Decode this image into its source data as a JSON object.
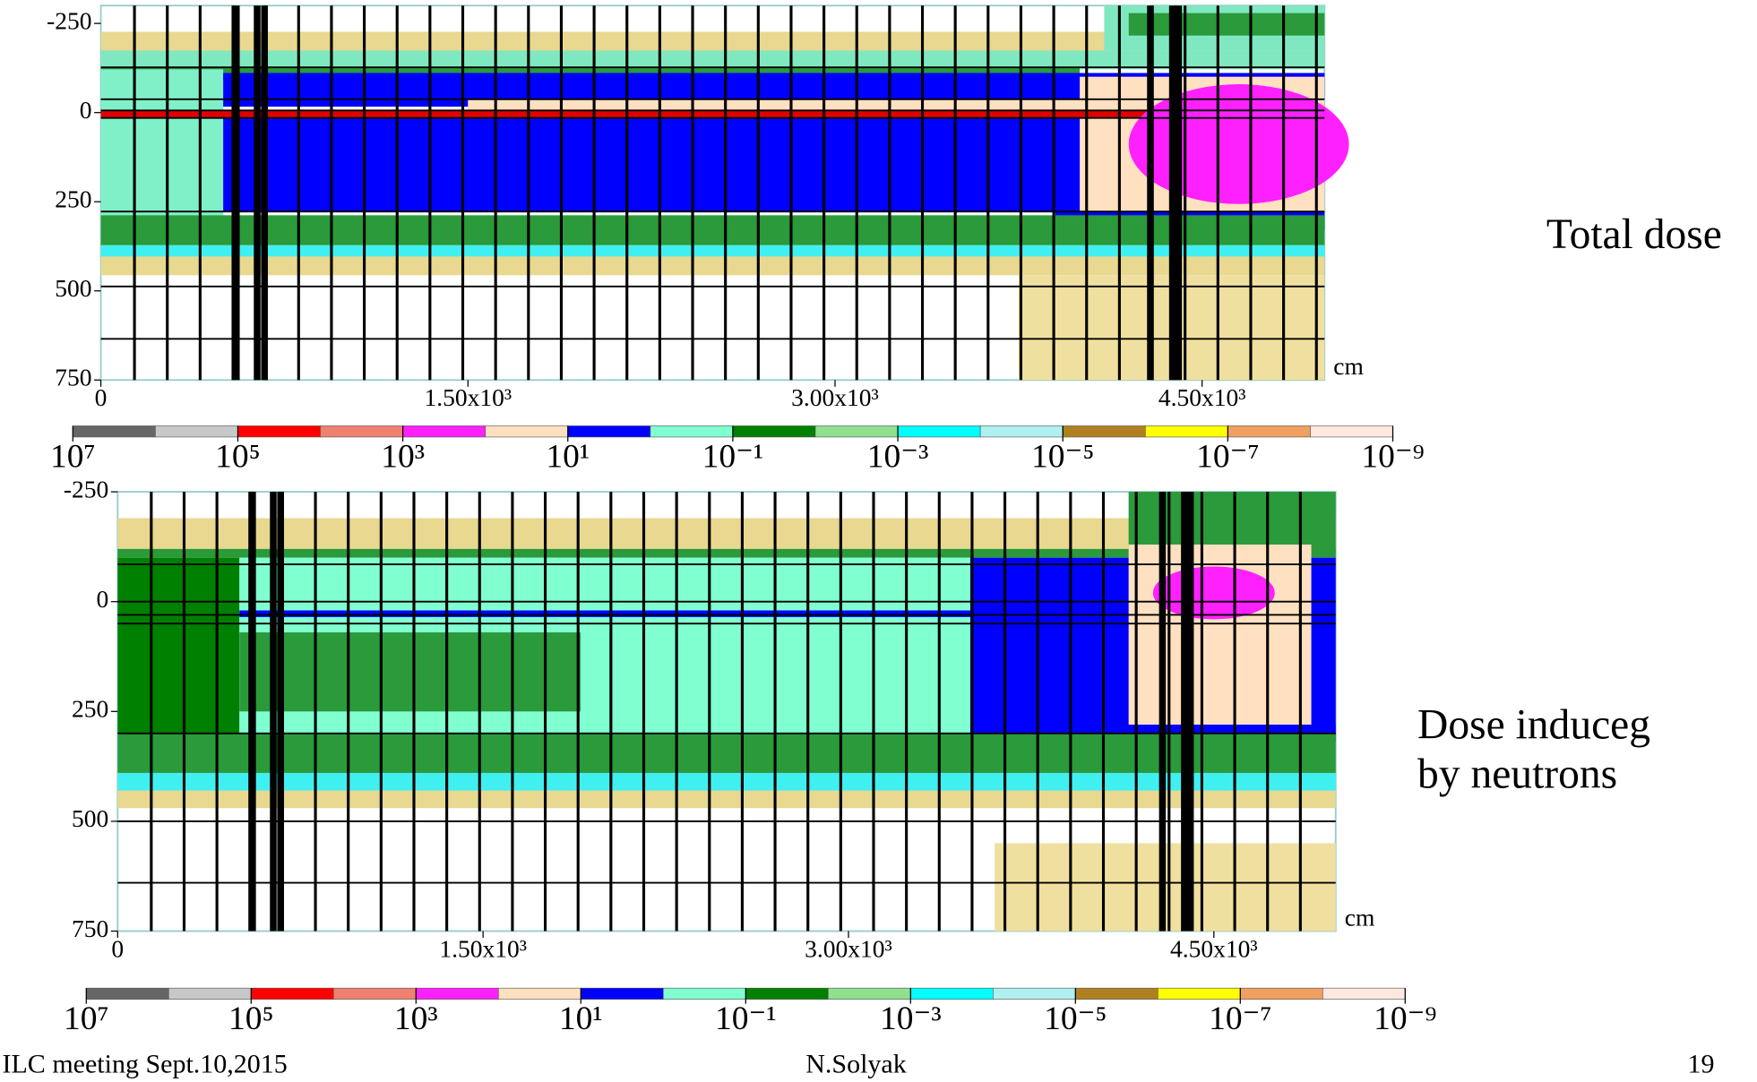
{
  "chart_data": [
    {
      "type": "heatmap",
      "annotation": "Total dose",
      "xlabel": "cm",
      "xlim": [
        0,
        5000
      ],
      "xticks": [
        0,
        {
          "value": 1500,
          "label": "1.50x10³"
        },
        {
          "value": 3000,
          "label": "3.00x10³"
        },
        {
          "value": 4500,
          "label": "4.50x10³"
        }
      ],
      "ylim": [
        -300,
        750
      ],
      "yticks": [
        -250,
        0,
        250,
        500,
        750
      ],
      "colorbar": {
        "colors": [
          "#666666",
          "#c8c8c8",
          "#ff0000",
          "#f08070",
          "#ff20ff",
          "#ffe0c0",
          "#0000ff",
          "#80ffd0",
          "#008000",
          "#90e090",
          "#00ffff",
          "#b0f0f0",
          "#b08020",
          "#ffff00",
          "#f0a060",
          "#ffe8e0"
        ],
        "ticks": [
          {
            "value": 10000000,
            "label": "10⁷"
          },
          {
            "value": 100000,
            "label": "10⁵"
          },
          {
            "value": 1000,
            "label": "10³"
          },
          {
            "value": 10,
            "label": "10¹"
          },
          {
            "value": 0.1,
            "label": "10⁻¹"
          },
          {
            "value": 0.001,
            "label": "10⁻³"
          },
          {
            "value": 1e-05,
            "label": "10⁻⁵"
          },
          {
            "value": 1e-07,
            "label": "10⁻⁷"
          },
          {
            "value": 1e-09,
            "label": "10⁻⁹"
          }
        ]
      }
    },
    {
      "type": "heatmap",
      "annotation": "Dose induceg\nby neutrons",
      "xlabel": "cm",
      "xlim": [
        0,
        5000
      ],
      "xticks": [
        0,
        {
          "value": 1500,
          "label": "1.50x10³"
        },
        {
          "value": 3000,
          "label": "3.00x10³"
        },
        {
          "value": 4500,
          "label": "4.50x10³"
        }
      ],
      "ylim": [
        -250,
        750
      ],
      "yticks": [
        -250,
        0,
        250,
        500,
        750
      ],
      "colorbar": {
        "colors": [
          "#666666",
          "#c8c8c8",
          "#ff0000",
          "#f08070",
          "#ff20ff",
          "#ffe0c0",
          "#0000ff",
          "#80ffd0",
          "#008000",
          "#90e090",
          "#00ffff",
          "#b0f0f0",
          "#b08020",
          "#ffff00",
          "#f0a060",
          "#ffe8e0"
        ],
        "ticks": [
          {
            "value": 10000000,
            "label": "10⁷"
          },
          {
            "value": 100000,
            "label": "10⁵"
          },
          {
            "value": 1000,
            "label": "10³"
          },
          {
            "value": 10,
            "label": "10¹"
          },
          {
            "value": 0.1,
            "label": "10⁻¹"
          },
          {
            "value": 0.001,
            "label": "10⁻³"
          },
          {
            "value": 1e-05,
            "label": "10⁻⁵"
          },
          {
            "value": 1e-07,
            "label": "10⁻⁷"
          },
          {
            "value": 1e-09,
            "label": "10⁻⁹"
          }
        ]
      }
    }
  ],
  "footer": {
    "left": "ILC meeting Sept.10,2015",
    "center": "N.Solyak",
    "page": "19"
  }
}
